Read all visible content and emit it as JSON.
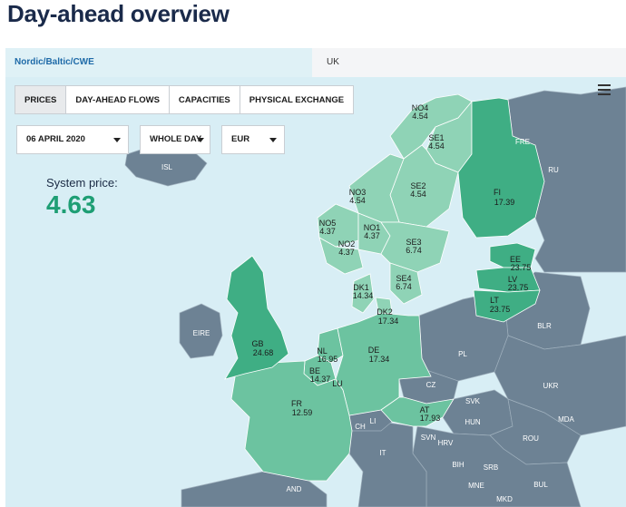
{
  "page": {
    "title": "Day-ahead overview"
  },
  "region_tabs": [
    {
      "label": "Nordic/Baltic/CWE",
      "active": true
    },
    {
      "label": "UK",
      "active": false
    }
  ],
  "view_buttons": [
    {
      "label": "PRICES",
      "active": true
    },
    {
      "label": "DAY-AHEAD FLOWS",
      "active": false
    },
    {
      "label": "CAPACITIES",
      "active": false
    },
    {
      "label": "PHYSICAL EXCHANGE",
      "active": false
    }
  ],
  "filters": {
    "date": "06 APRIL 2020",
    "period": "WHOLE DAY",
    "currency": "EUR"
  },
  "system_price": {
    "label": "System price:",
    "value": "4.63"
  },
  "colors": {
    "sea": "#d8eef5",
    "other_land": "#6d8294",
    "price_light": "#8fd3b6",
    "price_mid": "#6cc3a0",
    "price_dark": "#3fae84",
    "accent": "#1e9e74"
  },
  "areas": [
    {
      "code": "NO4",
      "price": "4.54"
    },
    {
      "code": "SE1",
      "price": "4.54"
    },
    {
      "code": "SE2",
      "price": "4.54"
    },
    {
      "code": "NO3",
      "price": "4.54"
    },
    {
      "code": "NO5",
      "price": "4.37"
    },
    {
      "code": "NO1",
      "price": "4.37"
    },
    {
      "code": "NO2",
      "price": "4.37"
    },
    {
      "code": "SE3",
      "price": "6.74"
    },
    {
      "code": "SE4",
      "price": "6.74"
    },
    {
      "code": "FI",
      "price": "17.39"
    },
    {
      "code": "EE",
      "price": "23.75"
    },
    {
      "code": "LV",
      "price": "23.75"
    },
    {
      "code": "LT",
      "price": "23.75"
    },
    {
      "code": "DK1",
      "price": "14.34"
    },
    {
      "code": "DK2",
      "price": "17.34"
    },
    {
      "code": "GB",
      "price": "24.68"
    },
    {
      "code": "NL",
      "price": "16.95"
    },
    {
      "code": "BE",
      "price": "14.37"
    },
    {
      "code": "DE",
      "price": "17.34"
    },
    {
      "code": "FR",
      "price": "12.59"
    },
    {
      "code": "AT",
      "price": "17.93"
    }
  ],
  "other_countries": [
    "ISL",
    "RU",
    "FRE",
    "EIRE",
    "PL",
    "BLR",
    "UKR",
    "CZ",
    "SVK",
    "HUN",
    "ROU",
    "MDA",
    "CH",
    "LI",
    "IT",
    "SVN",
    "HRV",
    "BIH",
    "SRB",
    "BUL",
    "MNE",
    "MKD",
    "AND",
    "LU"
  ]
}
